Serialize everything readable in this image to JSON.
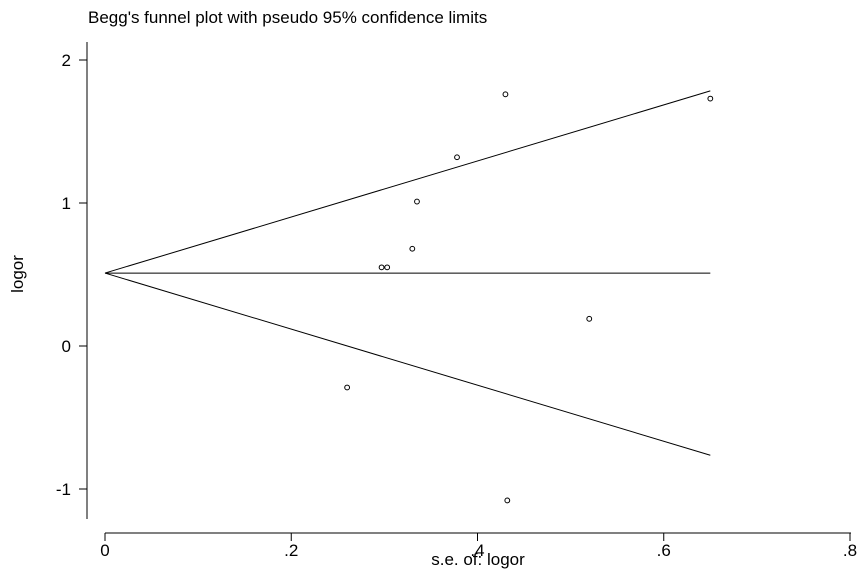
{
  "chart_data": {
    "type": "scatter",
    "title": "Begg's funnel plot with pseudo 95% confidence limits",
    "xlabel": "s.e. of: logor",
    "ylabel": "logor",
    "xlim": [
      0,
      0.8
    ],
    "ylim": [
      -1.1,
      2.1
    ],
    "x_ticks": [
      0,
      0.2,
      0.4,
      0.6,
      0.8
    ],
    "x_tick_labels": [
      "0",
      ".2",
      ".4",
      ".6",
      ".8"
    ],
    "y_ticks": [
      -1,
      0,
      1,
      2
    ],
    "y_tick_labels": [
      "-1",
      "0",
      "1",
      "2"
    ],
    "grid": false,
    "pooled_estimate": 0.51,
    "funnel_max_se": 0.65,
    "lines": [
      {
        "x": [
          0,
          0.65
        ],
        "y": [
          0.51,
          0.51
        ]
      },
      {
        "x": [
          0,
          0.65
        ],
        "y": [
          0.51,
          1.784
        ]
      },
      {
        "x": [
          0,
          0.65
        ],
        "y": [
          0.51,
          -0.764
        ]
      }
    ],
    "points": [
      {
        "x": 0.43,
        "y": 1.76
      },
      {
        "x": 0.65,
        "y": 1.73
      },
      {
        "x": 0.378,
        "y": 1.32
      },
      {
        "x": 0.335,
        "y": 1.01
      },
      {
        "x": 0.33,
        "y": 0.68
      },
      {
        "x": 0.297,
        "y": 0.55
      },
      {
        "x": 0.303,
        "y": 0.55
      },
      {
        "x": 0.52,
        "y": 0.19
      },
      {
        "x": 0.26,
        "y": -0.29
      },
      {
        "x": 0.432,
        "y": -1.08
      }
    ]
  }
}
